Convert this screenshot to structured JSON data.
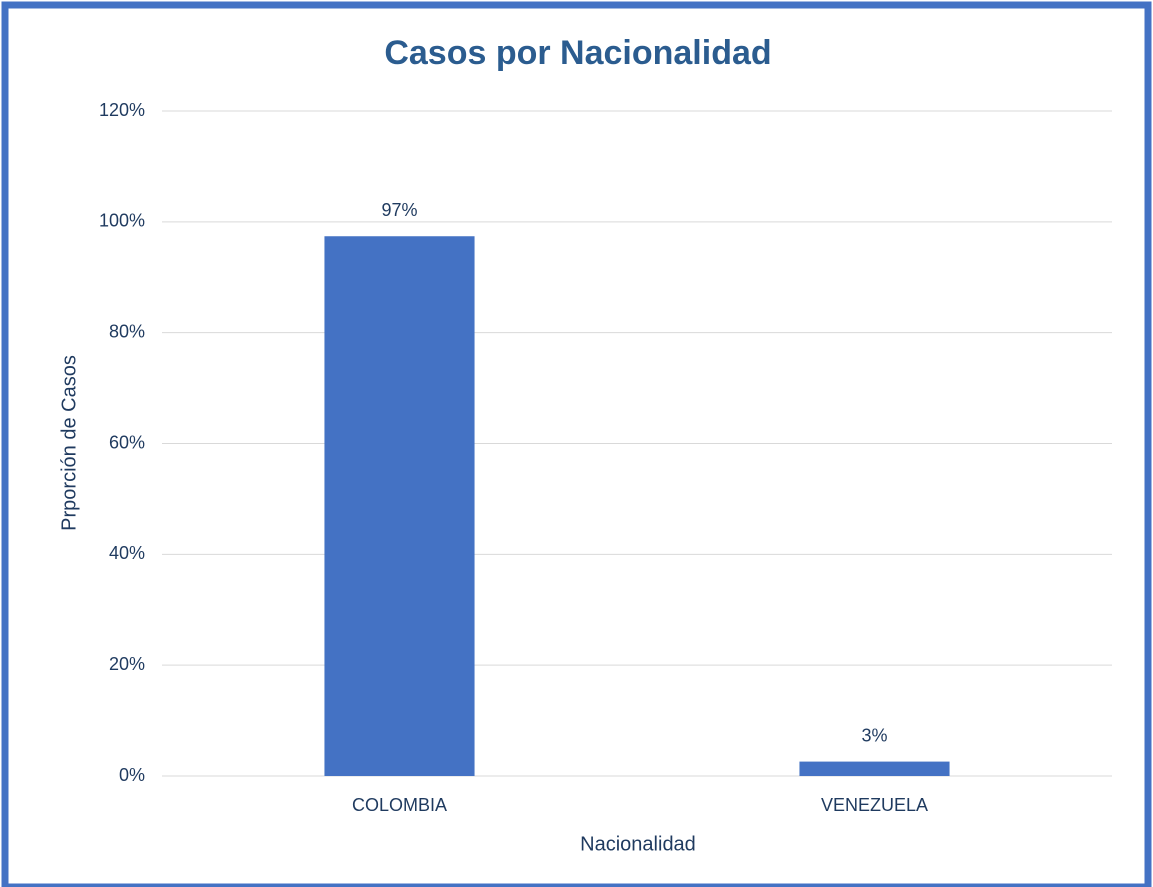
{
  "chart_data": {
    "type": "bar",
    "title": "Casos por Nacionalidad",
    "x_label": "Nacionalidad",
    "y_label": "Prporción de Casos",
    "categories": [
      "COLOMBIA",
      "VENEZUELA"
    ],
    "values": [
      97.4,
      2.6
    ],
    "value_labels": [
      "97%",
      "3%"
    ],
    "color": "#4472c4",
    "ylim": [
      0,
      120
    ],
    "yticks": [
      {
        "value": 0,
        "label": "0%"
      },
      {
        "value": 20,
        "label": "20%"
      },
      {
        "value": 40,
        "label": "40%"
      },
      {
        "value": 60,
        "label": "60%"
      },
      {
        "value": 80,
        "label": "80%"
      },
      {
        "value": 100,
        "label": "100%"
      },
      {
        "value": 120,
        "label": "120%"
      }
    ],
    "grid": true
  }
}
